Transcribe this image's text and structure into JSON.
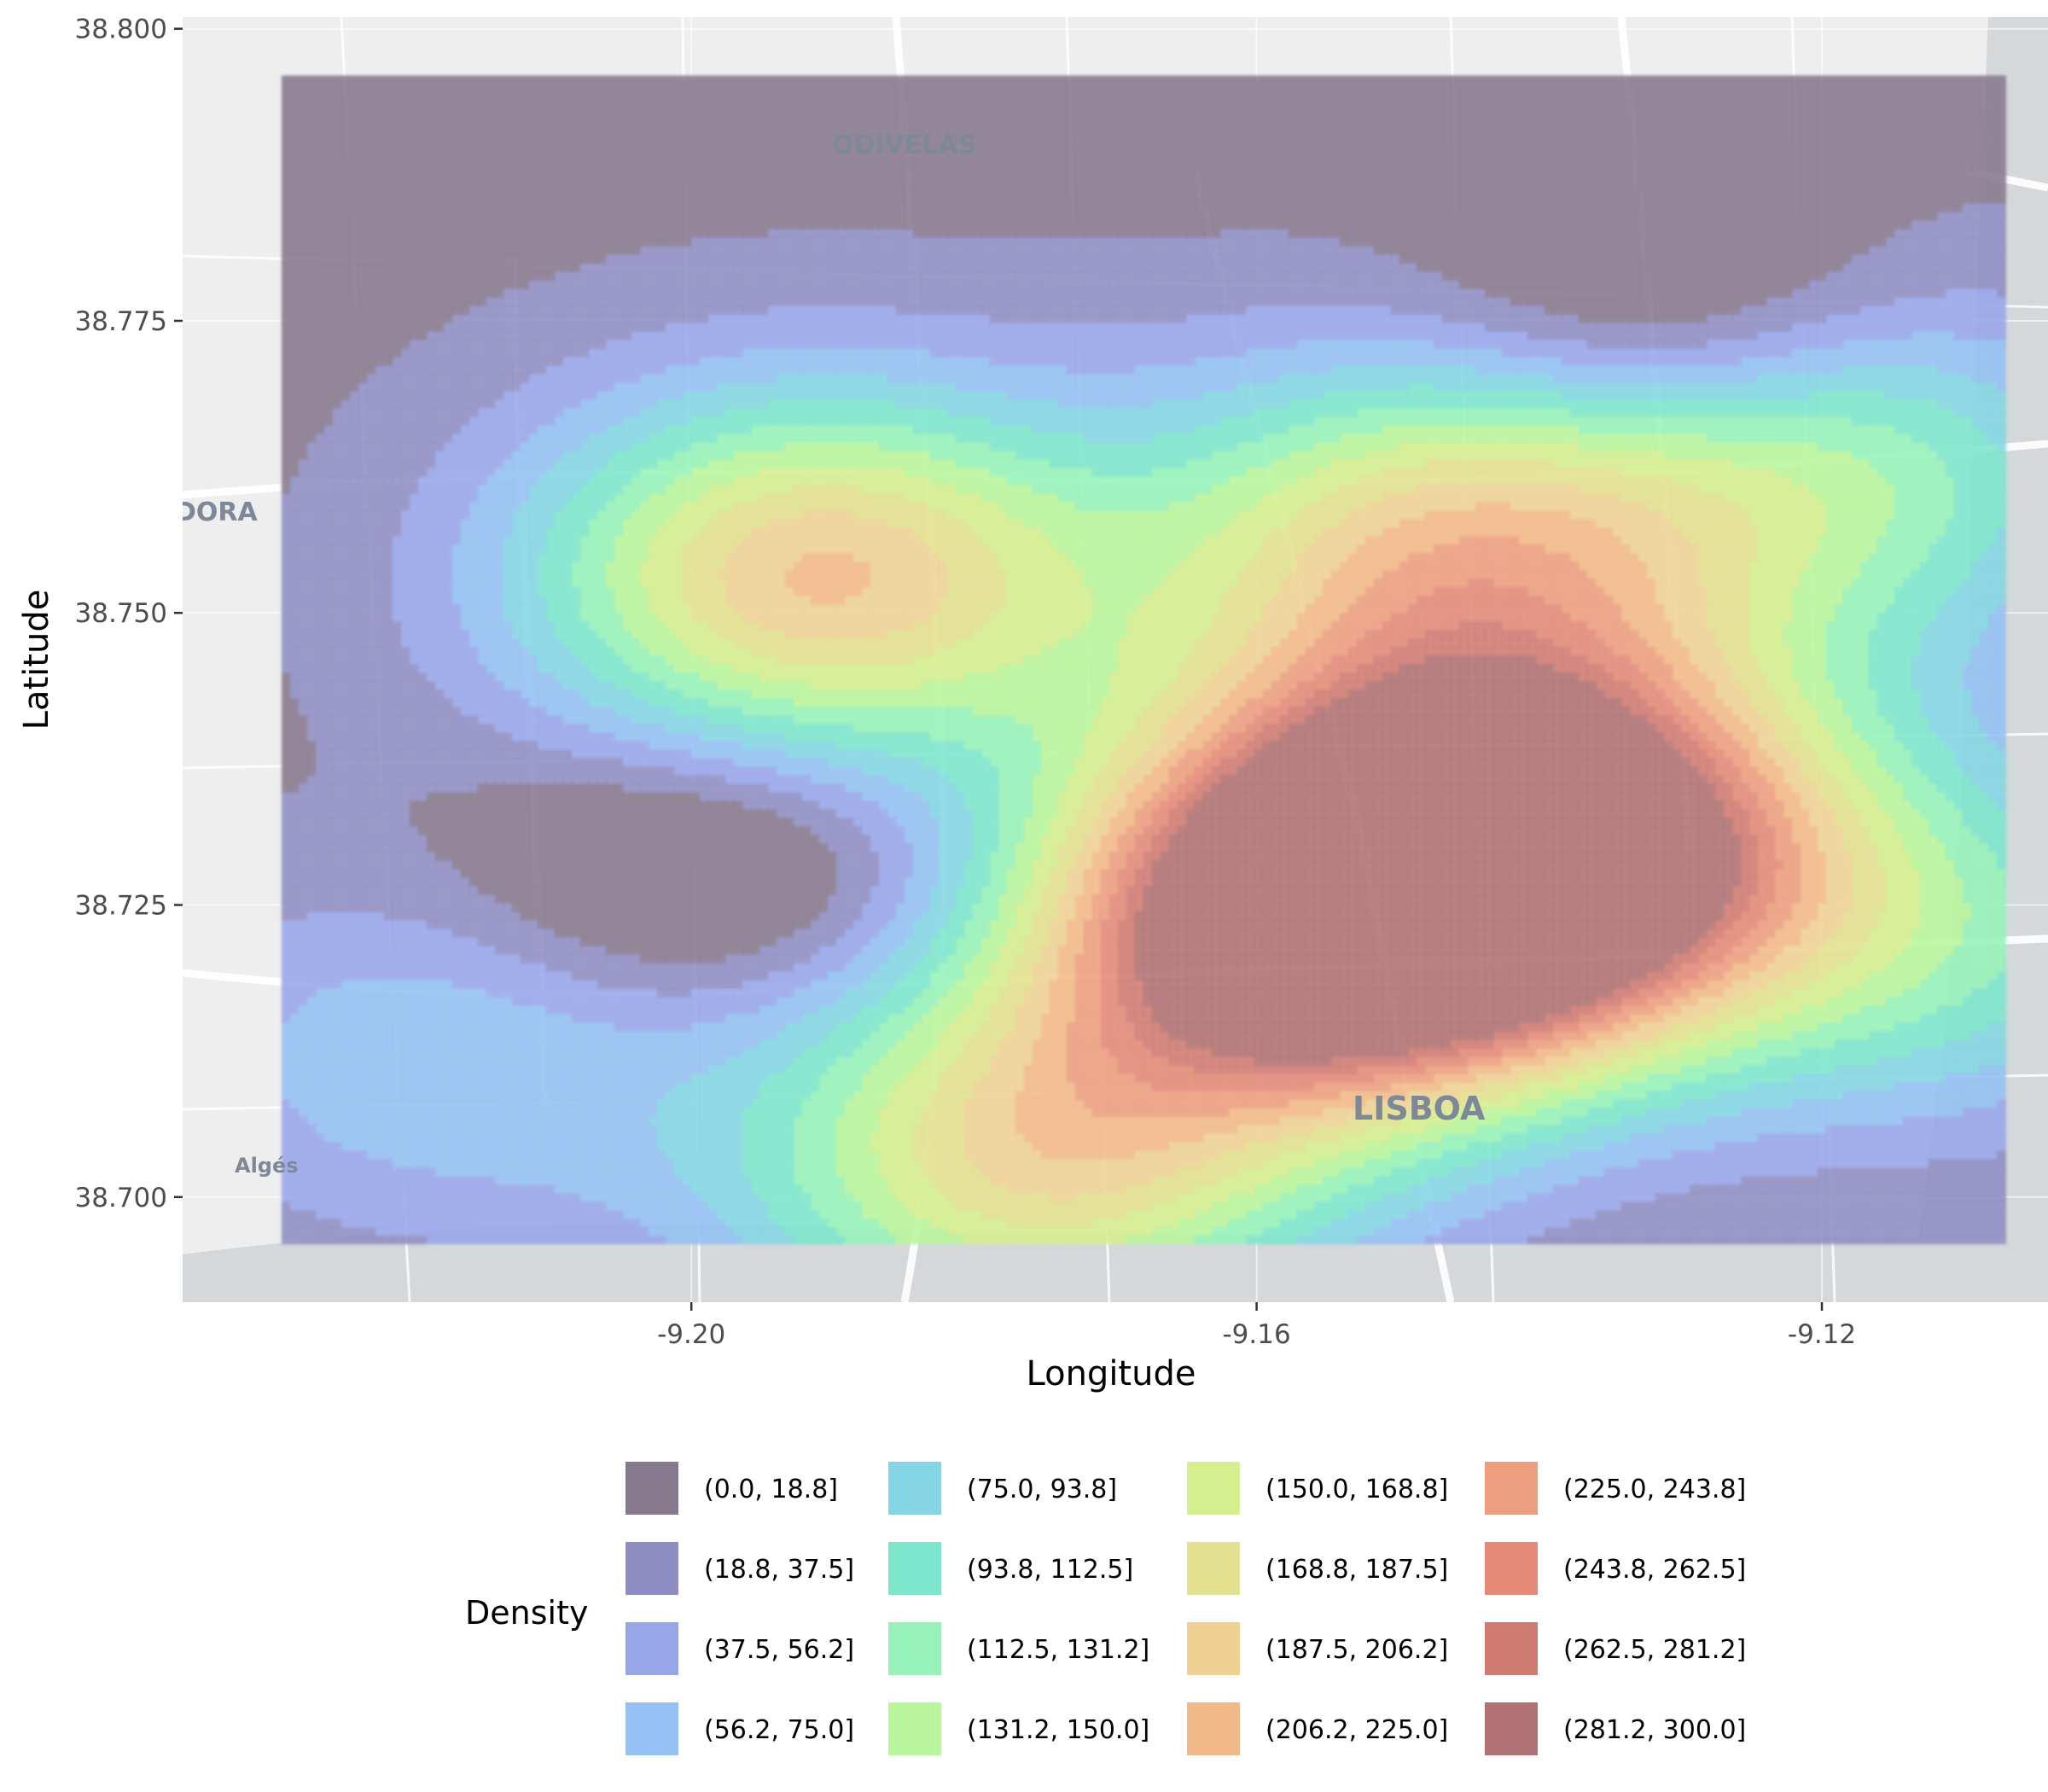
{
  "chart_data": {
    "type": "heatmap",
    "subtype": "2d-density-contour-over-map",
    "xlabel": "Longitude",
    "ylabel": "Latitude",
    "xlim": [
      -9.236,
      -9.104
    ],
    "ylim": [
      38.691,
      38.801
    ],
    "x_ticks": [
      -9.2,
      -9.16,
      -9.12
    ],
    "x_tick_labels": [
      "-9.20",
      "-9.16",
      "-9.12"
    ],
    "y_ticks": [
      38.7,
      38.725,
      38.75,
      38.775,
      38.8
    ],
    "y_tick_labels": [
      "38.700",
      "38.725",
      "38.750",
      "38.775",
      "38.800"
    ],
    "grid": true,
    "density_extent": {
      "lon": [
        -9.229,
        -9.107
      ],
      "lat": [
        38.696,
        38.796
      ]
    },
    "density_peaks": [
      {
        "lon": -9.141,
        "lat": 38.731,
        "density_level": 300.0
      },
      {
        "lon": -9.155,
        "lat": 38.723,
        "density_level": 290.0
      },
      {
        "lon": -9.191,
        "lat": 38.753,
        "density_level": 195.0
      },
      {
        "lon": -9.176,
        "lat": 38.703,
        "density_level": 165.0
      },
      {
        "lon": -9.147,
        "lat": 38.756,
        "density_level": 165.0
      },
      {
        "lon": -9.119,
        "lat": 38.762,
        "density_level": 110.0
      },
      {
        "lon": -9.112,
        "lat": 38.722,
        "density_level": 90.0
      },
      {
        "lon": -9.218,
        "lat": 38.712,
        "density_level": 60.0
      }
    ],
    "density_lows": [
      {
        "lon": -9.199,
        "lat": 38.728,
        "density_level": 5.0
      },
      {
        "lon": -9.131,
        "lat": 38.775,
        "density_level": 5.0
      }
    ],
    "legend": {
      "title": "Density",
      "placement": "bottom",
      "items": [
        {
          "label": "(0.0, 18.8]",
          "color": "#877a8e"
        },
        {
          "label": "(18.8, 37.5]",
          "color": "#8f8ec4"
        },
        {
          "label": "(37.5, 56.2]",
          "color": "#98a6ea"
        },
        {
          "label": "(56.2, 75.0]",
          "color": "#94c0f3"
        },
        {
          "label": "(75.0, 93.8]",
          "color": "#84d6e4"
        },
        {
          "label": "(93.8, 112.5]",
          "color": "#7de6cc"
        },
        {
          "label": "(112.5, 131.2]",
          "color": "#96f2b8"
        },
        {
          "label": "(131.2, 150.0]",
          "color": "#b9f59c"
        },
        {
          "label": "(150.0, 168.8]",
          "color": "#d5ee8e"
        },
        {
          "label": "(168.8, 187.5]",
          "color": "#e3e190"
        },
        {
          "label": "(187.5, 206.2]",
          "color": "#efd194"
        },
        {
          "label": "(206.2, 225.0]",
          "color": "#f2b988"
        },
        {
          "label": "(225.0, 243.8]",
          "color": "#ed9e7f"
        },
        {
          "label": "(243.8, 262.5]",
          "color": "#e48a77"
        },
        {
          "label": "(262.5, 281.2]",
          "color": "#d07b72"
        },
        {
          "label": "(281.2, 300.0]",
          "color": "#b07272"
        }
      ]
    }
  },
  "basemap": {
    "labels": [
      "ODIVELAS",
      "LISBOA",
      "DORA",
      "Algés"
    ],
    "colors": {
      "land": "#eeeeee",
      "water": "#d4d8db",
      "road": "#ffffff",
      "panel": "#ebebeb",
      "grid": "#ffffff"
    }
  }
}
